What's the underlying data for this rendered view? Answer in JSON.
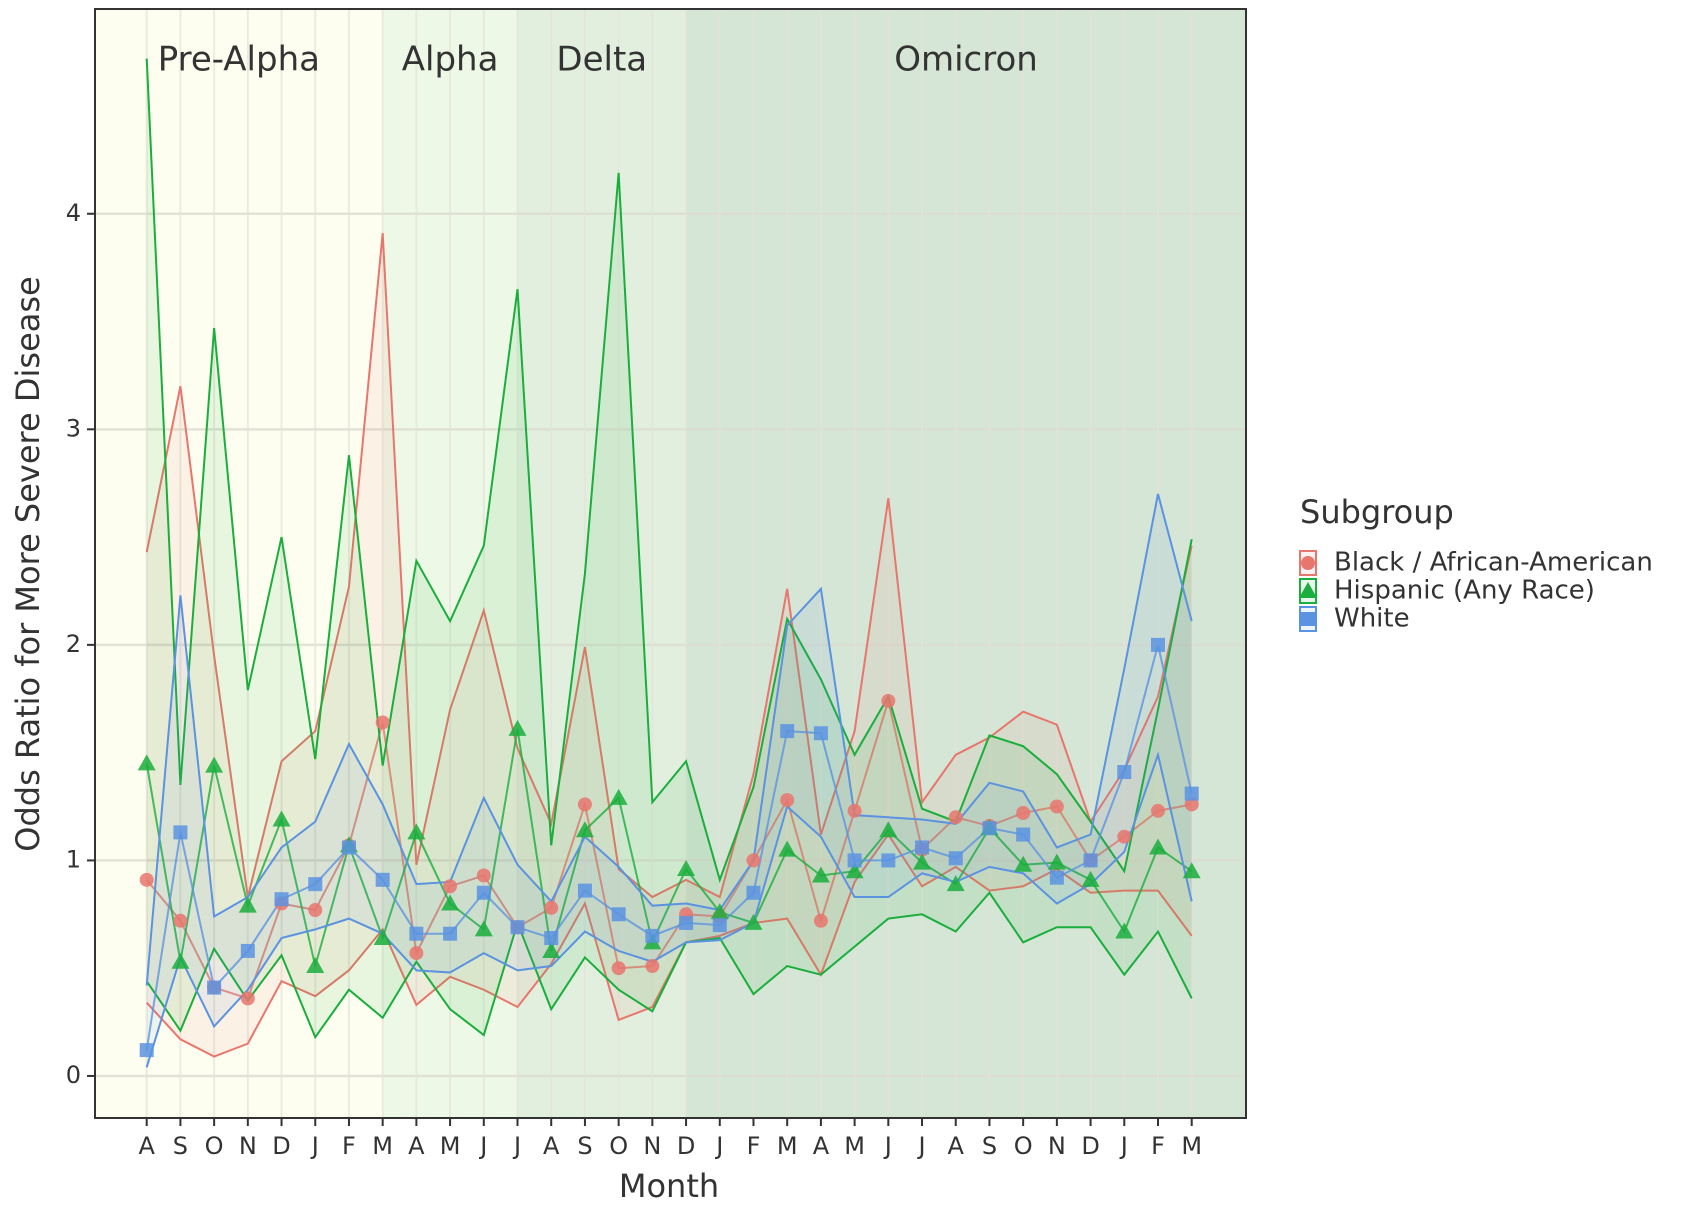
{
  "chart_data": {
    "type": "line",
    "x_label": "Month",
    "y_label": "Odds Ratio for More Severe Disease",
    "legend_title": "Subgroup",
    "legend_position": "right",
    "categories": [
      "A",
      "S",
      "O",
      "N",
      "D",
      "J",
      "F",
      "M",
      "A",
      "M",
      "J",
      "J",
      "A",
      "S",
      "O",
      "N",
      "D",
      "J",
      "F",
      "M",
      "A",
      "M",
      "J",
      "J",
      "A",
      "S",
      "O",
      "N",
      "D",
      "J",
      "F",
      "M"
    ],
    "ylim": [
      -0.195,
      4.95
    ],
    "yticks": [
      0,
      1,
      2,
      3,
      4
    ],
    "grid": true,
    "eras": [
      "Pre-Alpha",
      "Alpha",
      "Delta",
      "Omicron"
    ],
    "era_boundaries": [
      7,
      11,
      16
    ],
    "era_colors": [
      "#fdfdf0",
      "#eef8e6",
      "#e2efdf",
      "#d5e5d6"
    ],
    "series": [
      {
        "name": "Black / African-American",
        "color": "#e8766d",
        "marker": "circle",
        "values": [
          0.91,
          0.72,
          0.41,
          0.36,
          0.8,
          0.77,
          1.07,
          1.64,
          0.57,
          0.88,
          0.93,
          0.69,
          0.78,
          1.26,
          0.5,
          0.51,
          0.75,
          0.74,
          1.0,
          1.28,
          0.72,
          1.23,
          1.74,
          1.05,
          1.2,
          1.16,
          1.22,
          1.25,
          1.0,
          1.11,
          1.23,
          1.26
        ],
        "lower": [
          0.34,
          0.17,
          0.09,
          0.15,
          0.44,
          0.37,
          0.49,
          0.68,
          0.33,
          0.46,
          0.4,
          0.32,
          0.52,
          0.8,
          0.26,
          0.32,
          0.62,
          0.65,
          0.71,
          0.73,
          0.47,
          0.9,
          1.12,
          0.88,
          0.97,
          0.86,
          0.88,
          0.96,
          0.85,
          0.86,
          0.86,
          0.65
        ],
        "upper": [
          2.43,
          3.2,
          1.95,
          0.83,
          1.46,
          1.6,
          2.27,
          3.91,
          0.98,
          1.7,
          2.16,
          1.52,
          1.17,
          1.99,
          0.96,
          0.83,
          0.91,
          0.83,
          1.4,
          2.26,
          1.12,
          1.6,
          2.68,
          1.27,
          1.49,
          1.57,
          1.69,
          1.63,
          1.18,
          1.42,
          1.76,
          2.46
        ]
      },
      {
        "name": "Hispanic (Any Race)",
        "color": "#1aae3c",
        "marker": "triangle",
        "values": [
          1.45,
          0.53,
          1.44,
          0.79,
          1.19,
          0.51,
          1.07,
          0.64,
          1.13,
          0.8,
          0.68,
          1.61,
          0.58,
          1.14,
          1.29,
          0.62,
          0.96,
          0.76,
          0.71,
          1.05,
          0.93,
          0.95,
          1.14,
          0.99,
          0.89,
          1.15,
          0.98,
          0.99,
          0.91,
          0.67,
          1.06,
          0.95
        ],
        "lower": [
          0.44,
          0.21,
          0.59,
          0.35,
          0.56,
          0.18,
          0.4,
          0.27,
          0.53,
          0.31,
          0.19,
          0.71,
          0.31,
          0.55,
          0.4,
          0.3,
          0.62,
          0.64,
          0.38,
          0.51,
          0.47,
          0.6,
          0.73,
          0.75,
          0.67,
          0.85,
          0.62,
          0.69,
          0.69,
          0.47,
          0.67,
          0.36
        ],
        "upper": [
          4.72,
          1.35,
          3.47,
          1.79,
          2.5,
          1.47,
          2.88,
          1.44,
          2.39,
          2.11,
          2.46,
          3.65,
          1.07,
          2.33,
          4.19,
          1.27,
          1.46,
          0.91,
          1.34,
          2.12,
          1.84,
          1.49,
          1.76,
          1.24,
          1.18,
          1.58,
          1.53,
          1.4,
          1.18,
          0.95,
          1.7,
          2.49
        ]
      },
      {
        "name": "White",
        "color": "#5b93e0",
        "marker": "square",
        "values": [
          0.12,
          1.13,
          0.41,
          0.58,
          0.82,
          0.89,
          1.06,
          0.91,
          0.66,
          0.66,
          0.85,
          0.69,
          0.64,
          0.86,
          0.75,
          0.65,
          0.71,
          0.7,
          0.85,
          1.6,
          1.59,
          1.0,
          1.0,
          1.06,
          1.01,
          1.15,
          1.12,
          0.92,
          1.0,
          1.41,
          2.0,
          1.31
        ],
        "lower": [
          0.04,
          0.55,
          0.23,
          0.4,
          0.64,
          0.68,
          0.73,
          0.66,
          0.49,
          0.48,
          0.57,
          0.49,
          0.51,
          0.67,
          0.58,
          0.53,
          0.62,
          0.63,
          0.71,
          1.25,
          1.11,
          0.83,
          0.83,
          0.94,
          0.9,
          0.97,
          0.94,
          0.8,
          0.89,
          1.04,
          1.49,
          0.81
        ],
        "upper": [
          0.42,
          2.23,
          0.74,
          0.83,
          1.06,
          1.18,
          1.54,
          1.26,
          0.89,
          0.9,
          1.29,
          0.98,
          0.81,
          1.11,
          0.97,
          0.79,
          0.8,
          0.77,
          1.0,
          2.09,
          2.26,
          1.21,
          1.2,
          1.19,
          1.17,
          1.36,
          1.32,
          1.06,
          1.12,
          1.89,
          2.7,
          2.11
        ]
      }
    ]
  }
}
